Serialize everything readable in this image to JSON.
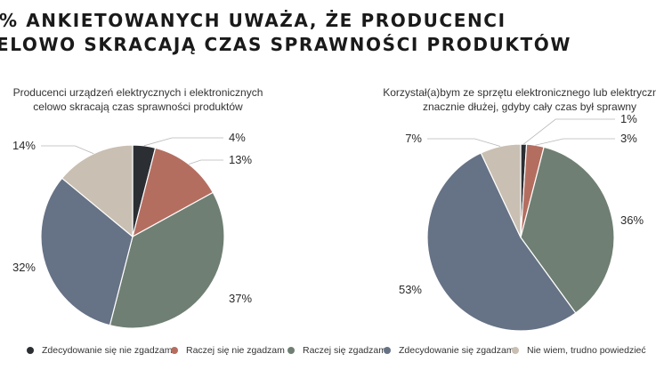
{
  "headline": {
    "line1": "% ANKIETOWANYCH UWAŻA, ŻE PRODUCENCI",
    "line2": "ELOWO SKRACAJĄ CZAS SPRAWNOŚCI PRODUKTÓW"
  },
  "chart_data": [
    {
      "type": "pie",
      "title_lines": [
        "Producenci urządzeń elektrycznych i elektronicznych",
        "celowo skracają czas sprawności produktów"
      ],
      "categories": [
        "Zdecydowanie się nie zgadzam",
        "Raczej się nie zgadzam",
        "Raczej się zgadzam",
        "Zdecydowanie się zgadzam",
        "Nie wiem, trudno powiedzieć"
      ],
      "values": [
        4,
        13,
        37,
        32,
        14
      ],
      "labels": [
        "4%",
        "13%",
        "37%",
        "32%",
        "14%"
      ]
    },
    {
      "type": "pie",
      "title_lines": [
        "Korzystał(a)bym ze sprzętu elektronicznego lub elektrycznego",
        "znacznie dłużej, gdyby cały czas był sprawny"
      ],
      "categories": [
        "Zdecydowanie się nie zgadzam",
        "Raczej się nie zgadzam",
        "Raczej się zgadzam",
        "Zdecydowanie się zgadzam",
        "Nie wiem, trudno powiedzieć"
      ],
      "values": [
        1,
        3,
        36,
        53,
        7
      ],
      "labels": [
        "1%",
        "3%",
        "36%",
        "53%",
        "7%"
      ]
    }
  ],
  "legend": {
    "items": [
      {
        "label": "Zdecydowanie się nie zgadzam",
        "color": "#2b2f33"
      },
      {
        "label": "Raczej się nie zgadzam",
        "color": "#b46e60"
      },
      {
        "label": "Raczej się zgadzam",
        "color": "#6f7f73"
      },
      {
        "label": "Zdecydowanie się zgadzam",
        "color": "#667285"
      },
      {
        "label": "Nie wiem, trudno powiedzieć",
        "color": "#c9bfb2"
      }
    ]
  }
}
